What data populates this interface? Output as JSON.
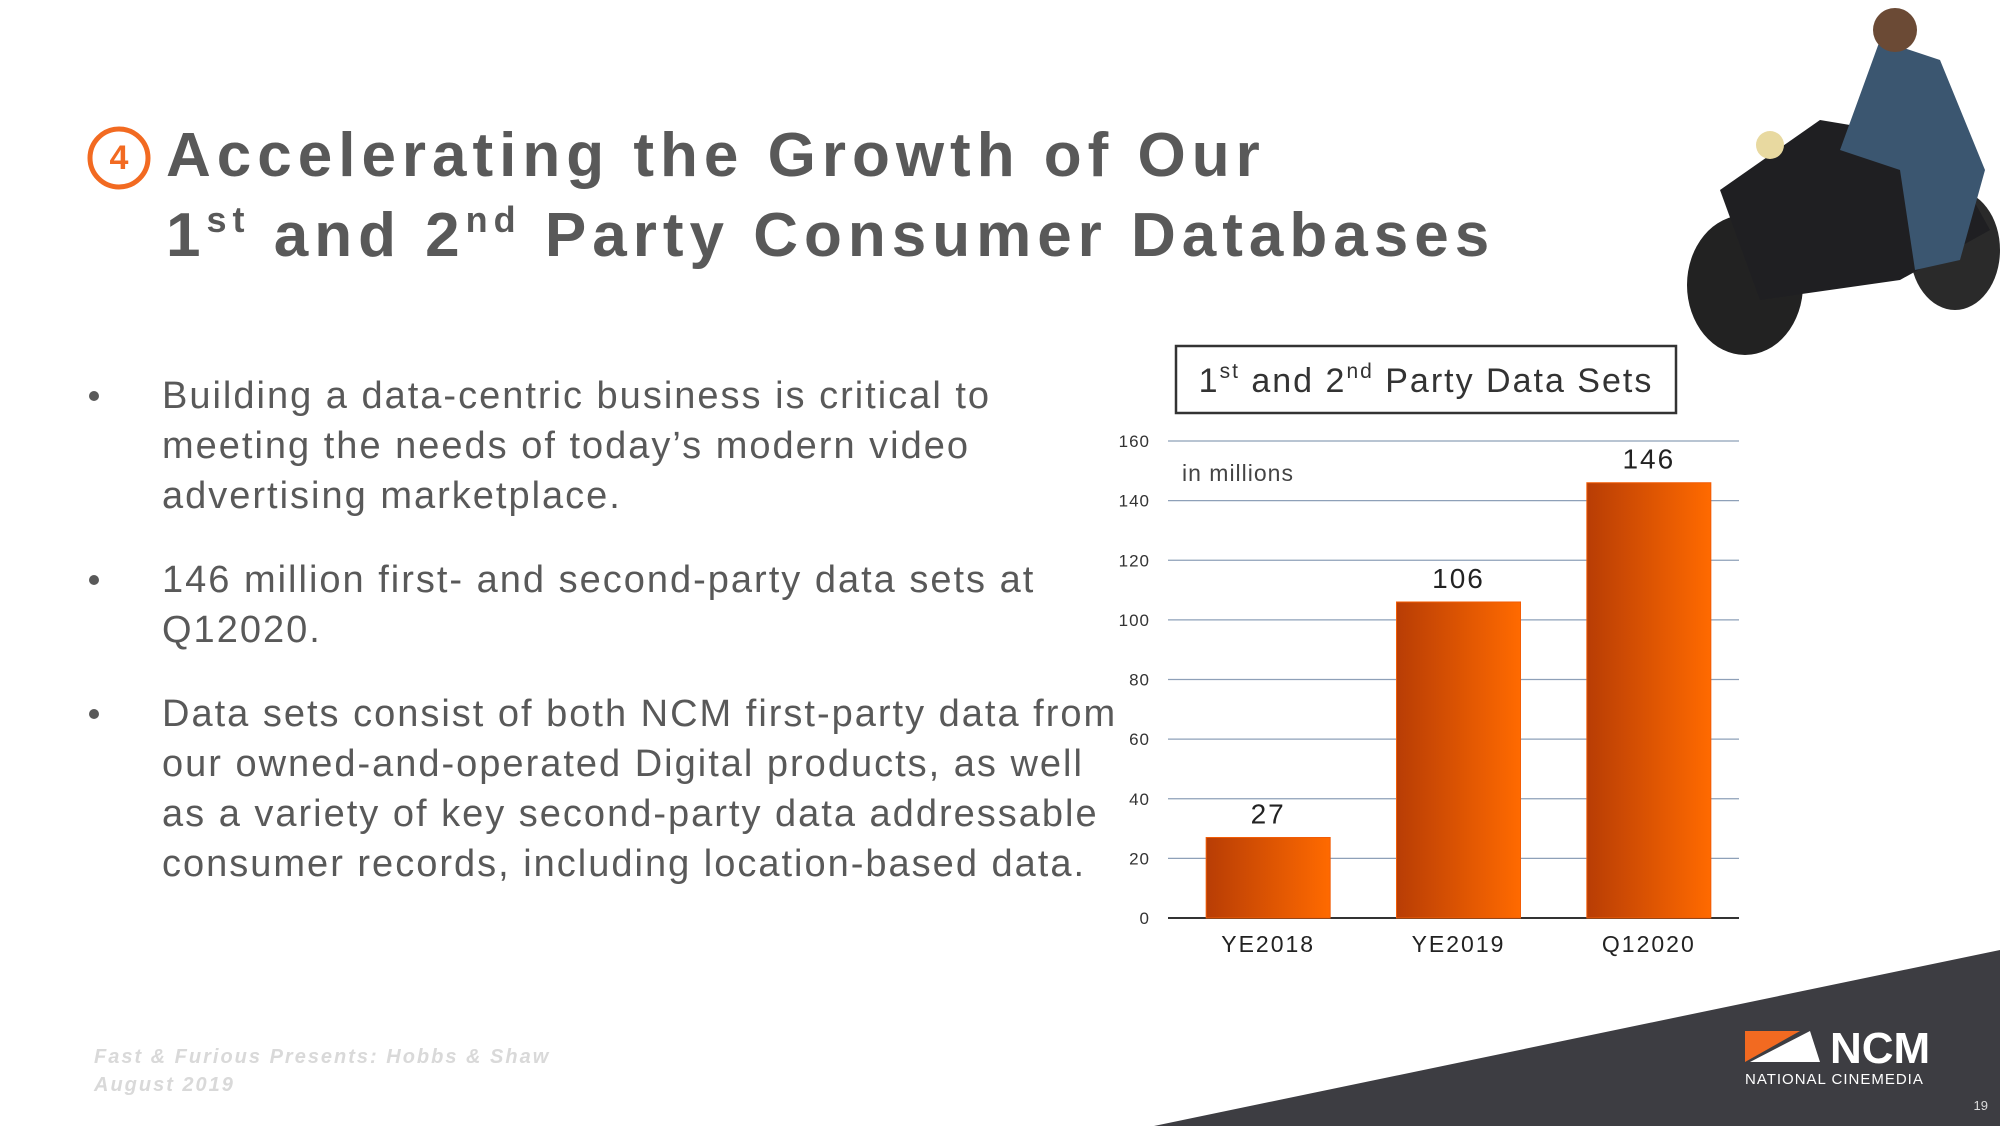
{
  "header": {
    "number": "4",
    "title_line1": "Accelerating the Growth of Our",
    "title_line2": [
      "1",
      "st",
      " and 2",
      "nd",
      " Party Consumer Databases"
    ]
  },
  "bullets": [
    [
      "Building a data-centric business is critical to",
      "meeting the needs of today’s modern video",
      "advertising marketplace."
    ],
    [
      "146 million first- and second-party data sets at",
      "Q12020."
    ],
    [
      "Data sets consist of both NCM first-party data from",
      "our owned-and-operated Digital products, as well",
      "as a variety of key second-party data addressable",
      "consumer records, including location-based data."
    ]
  ],
  "chart_data": {
    "type": "bar",
    "title": [
      "1",
      "st",
      " and 2",
      "nd",
      " Party Data Sets"
    ],
    "subtitle": "in millions",
    "categories": [
      "YE2018",
      "YE2019",
      "Q12020"
    ],
    "values": [
      27,
      106,
      146
    ],
    "color": "#f25c05",
    "ylim": [
      0,
      160
    ],
    "yticks": [
      0,
      20,
      40,
      60,
      80,
      100,
      120,
      140,
      160
    ],
    "grid": true
  },
  "footer": {
    "movie": "Fast & Furious Presents: Hobbs & Shaw",
    "date": "August 2019",
    "logo": "NCM",
    "logo_sub": "NATIONAL CINEMEDIA",
    "page": "19"
  }
}
